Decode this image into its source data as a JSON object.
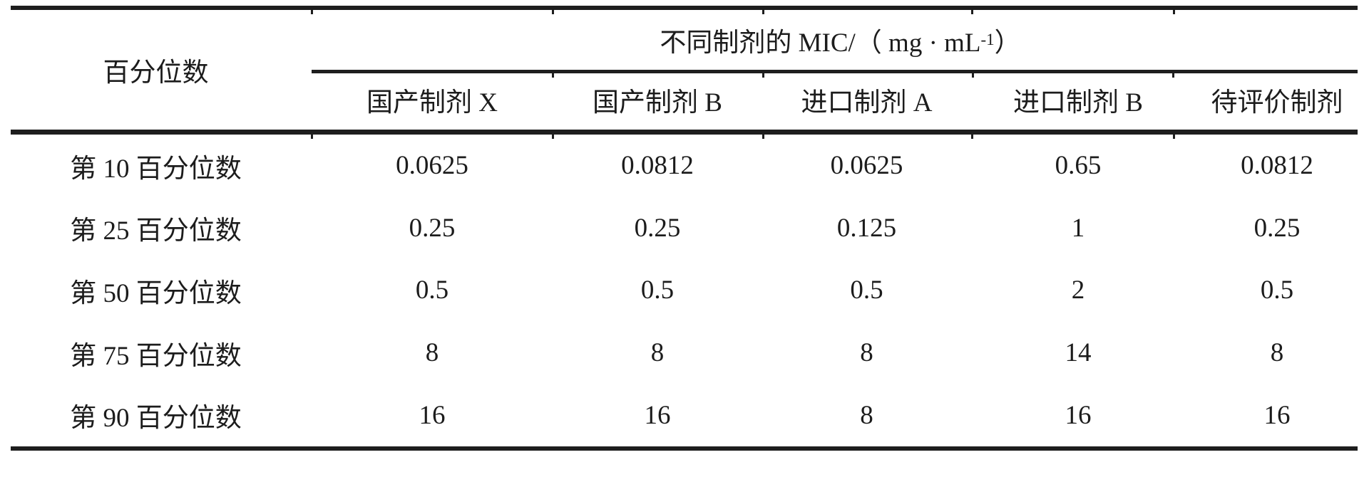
{
  "table": {
    "corner_header": "百分位数",
    "group_header": {
      "text": "不同制剂的 MIC/（ mg · mL",
      "sup": "-1",
      "close": " ）"
    },
    "columns": [
      "国产制剂 X",
      "国产制剂 B",
      "进口制剂 A",
      "进口制剂 B",
      "待评价制剂"
    ],
    "rows": [
      {
        "label": "第 10 百分位数",
        "values": [
          "0.0625",
          "0.0812",
          "0.0625",
          "0.65",
          "0.0812"
        ]
      },
      {
        "label": "第 25 百分位数",
        "values": [
          "0.25",
          "0.25",
          "0.125",
          "1",
          "0.25"
        ]
      },
      {
        "label": "第 50 百分位数",
        "values": [
          "0.5",
          "0.5",
          "0.5",
          "2",
          "0.5"
        ]
      },
      {
        "label": "第 75 百分位数",
        "values": [
          "8",
          "8",
          "8",
          "14",
          "8"
        ]
      },
      {
        "label": "第 90 百分位数",
        "values": [
          "16",
          "16",
          "8",
          "16",
          "16"
        ]
      }
    ],
    "colors": {
      "rule": "#1e1e1e",
      "text": "#1c1c1c",
      "background": "#ffffff"
    }
  }
}
